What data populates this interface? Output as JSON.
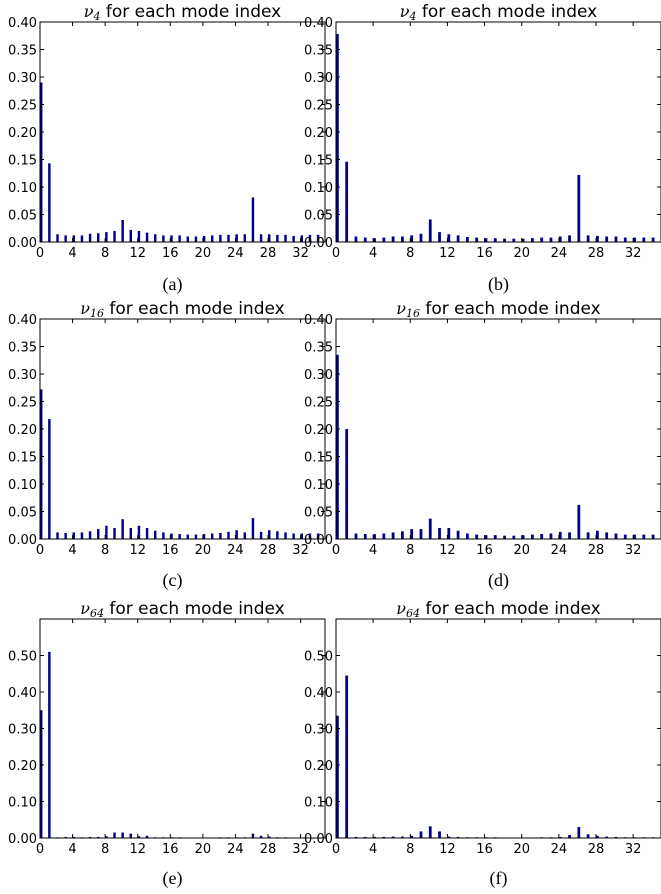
{
  "chart_data": [
    {
      "type": "bar",
      "panel": "(a)",
      "title": {
        "symbol": "ν",
        "sub": "4",
        "text": " for each mode index"
      },
      "caption": "(a)",
      "yticks": [
        "0.00",
        "0.05",
        "0.10",
        "0.15",
        "0.20",
        "0.25",
        "0.30",
        "0.35",
        "0.40"
      ],
      "ylim": [
        0,
        0.4
      ],
      "xticks": [
        "0",
        "4",
        "8",
        "12",
        "16",
        "20",
        "24",
        "28",
        "32"
      ],
      "xlim": [
        0,
        35
      ],
      "x": [
        0,
        1,
        2,
        3,
        4,
        5,
        6,
        7,
        8,
        9,
        10,
        11,
        12,
        13,
        14,
        15,
        16,
        17,
        18,
        19,
        20,
        21,
        22,
        23,
        24,
        25,
        26,
        27,
        28,
        29,
        30,
        31,
        32,
        33,
        34
      ],
      "values": [
        0.29,
        0.143,
        0.014,
        0.012,
        0.012,
        0.012,
        0.015,
        0.016,
        0.018,
        0.02,
        0.04,
        0.022,
        0.02,
        0.017,
        0.014,
        0.012,
        0.012,
        0.012,
        0.01,
        0.01,
        0.011,
        0.012,
        0.013,
        0.013,
        0.014,
        0.014,
        0.081,
        0.014,
        0.014,
        0.013,
        0.013,
        0.011,
        0.012,
        0.013,
        0.013
      ]
    },
    {
      "type": "bar",
      "panel": "(b)",
      "title": {
        "symbol": "ν",
        "sub": "4",
        "text": " for each mode index"
      },
      "caption": "(b)",
      "yticks": [
        "0.00",
        "0.05",
        "0.10",
        "0.15",
        "0.20",
        "0.25",
        "0.30",
        "0.35",
        "0.40"
      ],
      "ylim": [
        0,
        0.4
      ],
      "xticks": [
        "0",
        "4",
        "8",
        "12",
        "16",
        "20",
        "24",
        "28",
        "32"
      ],
      "xlim": [
        0,
        35
      ],
      "x": [
        0,
        1,
        2,
        3,
        4,
        5,
        6,
        7,
        8,
        9,
        10,
        11,
        12,
        13,
        14,
        15,
        16,
        17,
        18,
        19,
        20,
        21,
        22,
        23,
        24,
        25,
        26,
        27,
        28,
        29,
        30,
        31,
        32,
        33,
        34
      ],
      "values": [
        0.378,
        0.146,
        0.01,
        0.008,
        0.007,
        0.008,
        0.01,
        0.01,
        0.012,
        0.015,
        0.041,
        0.018,
        0.014,
        0.012,
        0.009,
        0.008,
        0.007,
        0.007,
        0.006,
        0.006,
        0.006,
        0.007,
        0.008,
        0.008,
        0.01,
        0.012,
        0.122,
        0.012,
        0.011,
        0.01,
        0.01,
        0.008,
        0.008,
        0.008,
        0.008
      ]
    },
    {
      "type": "bar",
      "panel": "(c)",
      "title": {
        "symbol": "ν",
        "sub": "16",
        "text": " for each mode index"
      },
      "caption": "(c)",
      "yticks": [
        "0.00",
        "0.05",
        "0.10",
        "0.15",
        "0.20",
        "0.25",
        "0.30",
        "0.35",
        "0.40"
      ],
      "ylim": [
        0,
        0.4
      ],
      "xticks": [
        "0",
        "4",
        "8",
        "12",
        "16",
        "20",
        "24",
        "28",
        "32"
      ],
      "xlim": [
        0,
        35
      ],
      "x": [
        0,
        1,
        2,
        3,
        4,
        5,
        6,
        7,
        8,
        9,
        10,
        11,
        12,
        13,
        14,
        15,
        16,
        17,
        18,
        19,
        20,
        21,
        22,
        23,
        24,
        25,
        26,
        27,
        28,
        29,
        30,
        31,
        32,
        33,
        34
      ],
      "values": [
        0.272,
        0.218,
        0.012,
        0.011,
        0.012,
        0.012,
        0.014,
        0.018,
        0.024,
        0.02,
        0.036,
        0.02,
        0.024,
        0.02,
        0.015,
        0.012,
        0.01,
        0.009,
        0.008,
        0.008,
        0.009,
        0.01,
        0.011,
        0.013,
        0.016,
        0.012,
        0.038,
        0.013,
        0.016,
        0.014,
        0.012,
        0.01,
        0.01,
        0.01,
        0.01
      ]
    },
    {
      "type": "bar",
      "panel": "(d)",
      "title": {
        "symbol": "ν",
        "sub": "16",
        "text": " for each mode index"
      },
      "caption": "(d)",
      "yticks": [
        "0.00",
        "0.05",
        "0.10",
        "0.15",
        "0.20",
        "0.25",
        "0.30",
        "0.35",
        "0.40"
      ],
      "ylim": [
        0,
        0.4
      ],
      "xticks": [
        "0",
        "4",
        "8",
        "12",
        "16",
        "20",
        "24",
        "28",
        "32"
      ],
      "xlim": [
        0,
        35
      ],
      "x": [
        0,
        1,
        2,
        3,
        4,
        5,
        6,
        7,
        8,
        9,
        10,
        11,
        12,
        13,
        14,
        15,
        16,
        17,
        18,
        19,
        20,
        21,
        22,
        23,
        24,
        25,
        26,
        27,
        28,
        29,
        30,
        31,
        32,
        33,
        34
      ],
      "values": [
        0.335,
        0.2,
        0.01,
        0.009,
        0.009,
        0.01,
        0.012,
        0.014,
        0.018,
        0.018,
        0.037,
        0.02,
        0.02,
        0.015,
        0.01,
        0.008,
        0.007,
        0.007,
        0.006,
        0.006,
        0.007,
        0.008,
        0.009,
        0.01,
        0.013,
        0.012,
        0.062,
        0.012,
        0.015,
        0.012,
        0.01,
        0.008,
        0.008,
        0.008,
        0.008
      ]
    },
    {
      "type": "bar",
      "panel": "(e)",
      "title": {
        "symbol": "ν",
        "sub": "64",
        "text": " for each mode index"
      },
      "caption": "(e)",
      "yticks": [
        "0.00",
        "0.10",
        "0.20",
        "0.30",
        "0.40",
        "0.50"
      ],
      "ylim": [
        0,
        0.6
      ],
      "xticks": [
        "0",
        "4",
        "8",
        "12",
        "16",
        "20",
        "24",
        "28",
        "32"
      ],
      "xlim": [
        0,
        35
      ],
      "x": [
        0,
        1,
        2,
        3,
        4,
        5,
        6,
        7,
        8,
        9,
        10,
        11,
        12,
        13,
        14,
        15,
        16,
        17,
        18,
        19,
        20,
        21,
        22,
        23,
        24,
        25,
        26,
        27,
        28,
        29,
        30,
        31,
        32,
        33,
        34
      ],
      "values": [
        0.35,
        0.51,
        0.002,
        0.003,
        0.003,
        0.002,
        0.003,
        0.003,
        0.005,
        0.015,
        0.015,
        0.012,
        0.005,
        0.006,
        0.002,
        0.002,
        0.002,
        0.002,
        0.001,
        0.001,
        0.001,
        0.001,
        0.002,
        0.002,
        0.002,
        0.002,
        0.012,
        0.006,
        0.004,
        0.002,
        0.002,
        0.001,
        0.001,
        0.001,
        0.001
      ]
    },
    {
      "type": "bar",
      "panel": "(f)",
      "title": {
        "symbol": "ν",
        "sub": "64",
        "text": " for each mode index"
      },
      "caption": "(f)",
      "yticks": [
        "0.00",
        "0.10",
        "0.20",
        "0.30",
        "0.40",
        "0.50"
      ],
      "ylim": [
        0,
        0.6
      ],
      "xticks": [
        "0",
        "4",
        "8",
        "12",
        "16",
        "20",
        "24",
        "28",
        "32"
      ],
      "xlim": [
        0,
        35
      ],
      "x": [
        0,
        1,
        2,
        3,
        4,
        5,
        6,
        7,
        8,
        9,
        10,
        11,
        12,
        13,
        14,
        15,
        16,
        17,
        18,
        19,
        20,
        21,
        22,
        23,
        24,
        25,
        26,
        27,
        28,
        29,
        30,
        31,
        32,
        33,
        34
      ],
      "values": [
        0.335,
        0.445,
        0.003,
        0.003,
        0.003,
        0.003,
        0.004,
        0.004,
        0.006,
        0.018,
        0.032,
        0.018,
        0.004,
        0.003,
        0.002,
        0.002,
        0.002,
        0.002,
        0.001,
        0.001,
        0.001,
        0.001,
        0.002,
        0.002,
        0.003,
        0.008,
        0.03,
        0.01,
        0.006,
        0.004,
        0.003,
        0.002,
        0.002,
        0.002,
        0.002
      ]
    }
  ]
}
